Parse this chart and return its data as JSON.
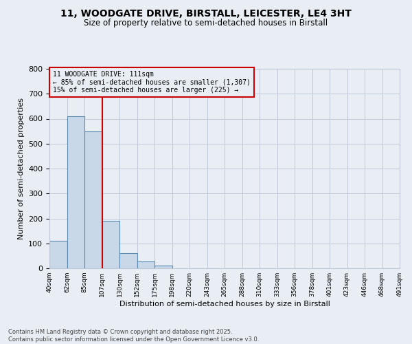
{
  "title_line1": "11, WOODGATE DRIVE, BIRSTALL, LEICESTER, LE4 3HT",
  "title_line2": "Size of property relative to semi-detached houses in Birstall",
  "xlabel": "Distribution of semi-detached houses by size in Birstall",
  "ylabel": "Number of semi-detached properties",
  "footer_line1": "Contains HM Land Registry data © Crown copyright and database right 2025.",
  "footer_line2": "Contains public sector information licensed under the Open Government Licence v3.0.",
  "bin_labels": [
    "40sqm",
    "62sqm",
    "85sqm",
    "107sqm",
    "130sqm",
    "152sqm",
    "175sqm",
    "198sqm",
    "220sqm",
    "243sqm",
    "265sqm",
    "288sqm",
    "310sqm",
    "333sqm",
    "356sqm",
    "378sqm",
    "401sqm",
    "423sqm",
    "446sqm",
    "468sqm",
    "491sqm"
  ],
  "bar_values": [
    110,
    611,
    549,
    191,
    62,
    28,
    11,
    0,
    0,
    0,
    0,
    0,
    0,
    0,
    0,
    0,
    0,
    0,
    0,
    0
  ],
  "bar_color": "#c8d8e8",
  "bar_edge_color": "#5a8ab0",
  "grid_color": "#c0c8d8",
  "background_color": "#e8eef4",
  "annotation_box_color": "#cc0000",
  "vline_color": "#cc0000",
  "property_bin_index": 3,
  "annotation_title": "11 WOODGATE DRIVE: 111sqm",
  "annotation_line2": "← 85% of semi-detached houses are smaller (1,307)",
  "annotation_line3": "15% of semi-detached houses are larger (225) →",
  "ylim": [
    0,
    800
  ],
  "yticks": [
    0,
    100,
    200,
    300,
    400,
    500,
    600,
    700,
    800
  ]
}
